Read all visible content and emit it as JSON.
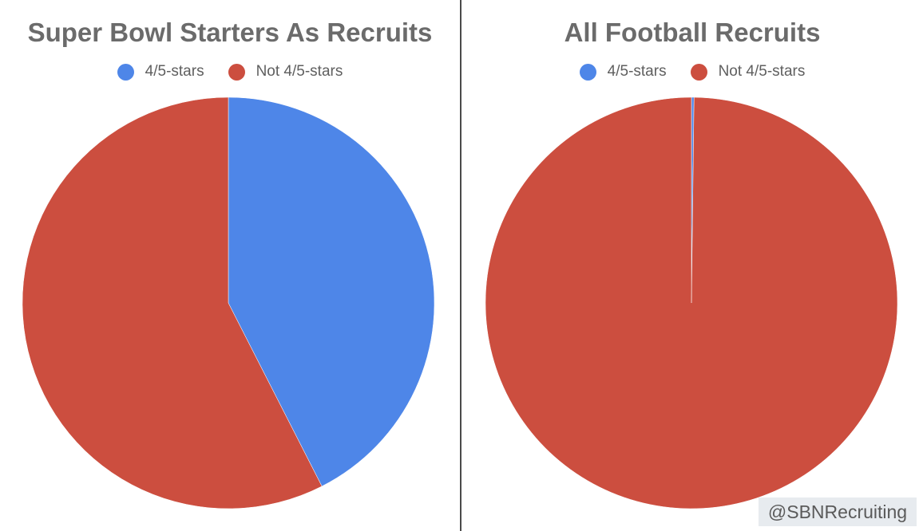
{
  "chart_data": [
    {
      "type": "pie",
      "title": "Super Bowl Starters As Recruits",
      "categories": [
        "4/5-stars",
        "Not 4/5-stars"
      ],
      "values": [
        42.5,
        57.5
      ],
      "colors": [
        "#4e86e8",
        "#cc4e3f"
      ],
      "legend_position": "top-center"
    },
    {
      "type": "pie",
      "title": "All Football Recruits",
      "categories": [
        "4/5-stars",
        "Not 4/5-stars"
      ],
      "values": [
        0.2,
        99.8
      ],
      "colors": [
        "#4e86e8",
        "#cc4e3f"
      ],
      "legend_position": "top-center"
    }
  ],
  "watermark": "@SBNRecruiting"
}
